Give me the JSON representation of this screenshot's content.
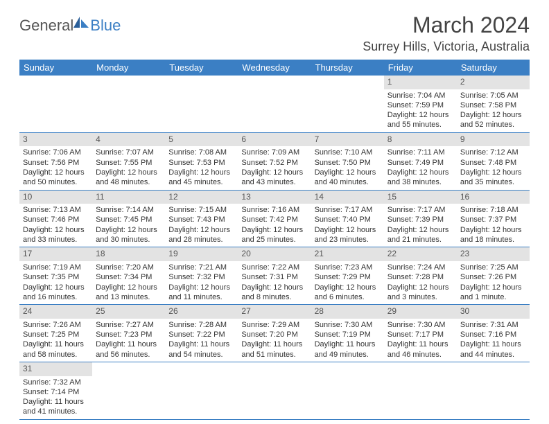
{
  "logo": {
    "general": "General",
    "blue": "Blue"
  },
  "title": "March 2024",
  "location": "Surrey Hills, Victoria, Australia",
  "colors": {
    "header_bg": "#3b7fc4",
    "header_fg": "#ffffff",
    "daynum_bg": "#e3e3e3",
    "row_border": "#3b7fc4",
    "text": "#333333"
  },
  "typography": {
    "title_fontsize": 32,
    "location_fontsize": 18,
    "header_fontsize": 13,
    "cell_fontsize": 11
  },
  "dayHeaders": [
    "Sunday",
    "Monday",
    "Tuesday",
    "Wednesday",
    "Thursday",
    "Friday",
    "Saturday"
  ],
  "weeks": [
    [
      null,
      null,
      null,
      null,
      null,
      {
        "n": "1",
        "sr": "Sunrise: 7:04 AM",
        "ss": "Sunset: 7:59 PM",
        "d1": "Daylight: 12 hours",
        "d2": "and 55 minutes."
      },
      {
        "n": "2",
        "sr": "Sunrise: 7:05 AM",
        "ss": "Sunset: 7:58 PM",
        "d1": "Daylight: 12 hours",
        "d2": "and 52 minutes."
      }
    ],
    [
      {
        "n": "3",
        "sr": "Sunrise: 7:06 AM",
        "ss": "Sunset: 7:56 PM",
        "d1": "Daylight: 12 hours",
        "d2": "and 50 minutes."
      },
      {
        "n": "4",
        "sr": "Sunrise: 7:07 AM",
        "ss": "Sunset: 7:55 PM",
        "d1": "Daylight: 12 hours",
        "d2": "and 48 minutes."
      },
      {
        "n": "5",
        "sr": "Sunrise: 7:08 AM",
        "ss": "Sunset: 7:53 PM",
        "d1": "Daylight: 12 hours",
        "d2": "and 45 minutes."
      },
      {
        "n": "6",
        "sr": "Sunrise: 7:09 AM",
        "ss": "Sunset: 7:52 PM",
        "d1": "Daylight: 12 hours",
        "d2": "and 43 minutes."
      },
      {
        "n": "7",
        "sr": "Sunrise: 7:10 AM",
        "ss": "Sunset: 7:50 PM",
        "d1": "Daylight: 12 hours",
        "d2": "and 40 minutes."
      },
      {
        "n": "8",
        "sr": "Sunrise: 7:11 AM",
        "ss": "Sunset: 7:49 PM",
        "d1": "Daylight: 12 hours",
        "d2": "and 38 minutes."
      },
      {
        "n": "9",
        "sr": "Sunrise: 7:12 AM",
        "ss": "Sunset: 7:48 PM",
        "d1": "Daylight: 12 hours",
        "d2": "and 35 minutes."
      }
    ],
    [
      {
        "n": "10",
        "sr": "Sunrise: 7:13 AM",
        "ss": "Sunset: 7:46 PM",
        "d1": "Daylight: 12 hours",
        "d2": "and 33 minutes."
      },
      {
        "n": "11",
        "sr": "Sunrise: 7:14 AM",
        "ss": "Sunset: 7:45 PM",
        "d1": "Daylight: 12 hours",
        "d2": "and 30 minutes."
      },
      {
        "n": "12",
        "sr": "Sunrise: 7:15 AM",
        "ss": "Sunset: 7:43 PM",
        "d1": "Daylight: 12 hours",
        "d2": "and 28 minutes."
      },
      {
        "n": "13",
        "sr": "Sunrise: 7:16 AM",
        "ss": "Sunset: 7:42 PM",
        "d1": "Daylight: 12 hours",
        "d2": "and 25 minutes."
      },
      {
        "n": "14",
        "sr": "Sunrise: 7:17 AM",
        "ss": "Sunset: 7:40 PM",
        "d1": "Daylight: 12 hours",
        "d2": "and 23 minutes."
      },
      {
        "n": "15",
        "sr": "Sunrise: 7:17 AM",
        "ss": "Sunset: 7:39 PM",
        "d1": "Daylight: 12 hours",
        "d2": "and 21 minutes."
      },
      {
        "n": "16",
        "sr": "Sunrise: 7:18 AM",
        "ss": "Sunset: 7:37 PM",
        "d1": "Daylight: 12 hours",
        "d2": "and 18 minutes."
      }
    ],
    [
      {
        "n": "17",
        "sr": "Sunrise: 7:19 AM",
        "ss": "Sunset: 7:35 PM",
        "d1": "Daylight: 12 hours",
        "d2": "and 16 minutes."
      },
      {
        "n": "18",
        "sr": "Sunrise: 7:20 AM",
        "ss": "Sunset: 7:34 PM",
        "d1": "Daylight: 12 hours",
        "d2": "and 13 minutes."
      },
      {
        "n": "19",
        "sr": "Sunrise: 7:21 AM",
        "ss": "Sunset: 7:32 PM",
        "d1": "Daylight: 12 hours",
        "d2": "and 11 minutes."
      },
      {
        "n": "20",
        "sr": "Sunrise: 7:22 AM",
        "ss": "Sunset: 7:31 PM",
        "d1": "Daylight: 12 hours",
        "d2": "and 8 minutes."
      },
      {
        "n": "21",
        "sr": "Sunrise: 7:23 AM",
        "ss": "Sunset: 7:29 PM",
        "d1": "Daylight: 12 hours",
        "d2": "and 6 minutes."
      },
      {
        "n": "22",
        "sr": "Sunrise: 7:24 AM",
        "ss": "Sunset: 7:28 PM",
        "d1": "Daylight: 12 hours",
        "d2": "and 3 minutes."
      },
      {
        "n": "23",
        "sr": "Sunrise: 7:25 AM",
        "ss": "Sunset: 7:26 PM",
        "d1": "Daylight: 12 hours",
        "d2": "and 1 minute."
      }
    ],
    [
      {
        "n": "24",
        "sr": "Sunrise: 7:26 AM",
        "ss": "Sunset: 7:25 PM",
        "d1": "Daylight: 11 hours",
        "d2": "and 58 minutes."
      },
      {
        "n": "25",
        "sr": "Sunrise: 7:27 AM",
        "ss": "Sunset: 7:23 PM",
        "d1": "Daylight: 11 hours",
        "d2": "and 56 minutes."
      },
      {
        "n": "26",
        "sr": "Sunrise: 7:28 AM",
        "ss": "Sunset: 7:22 PM",
        "d1": "Daylight: 11 hours",
        "d2": "and 54 minutes."
      },
      {
        "n": "27",
        "sr": "Sunrise: 7:29 AM",
        "ss": "Sunset: 7:20 PM",
        "d1": "Daylight: 11 hours",
        "d2": "and 51 minutes."
      },
      {
        "n": "28",
        "sr": "Sunrise: 7:30 AM",
        "ss": "Sunset: 7:19 PM",
        "d1": "Daylight: 11 hours",
        "d2": "and 49 minutes."
      },
      {
        "n": "29",
        "sr": "Sunrise: 7:30 AM",
        "ss": "Sunset: 7:17 PM",
        "d1": "Daylight: 11 hours",
        "d2": "and 46 minutes."
      },
      {
        "n": "30",
        "sr": "Sunrise: 7:31 AM",
        "ss": "Sunset: 7:16 PM",
        "d1": "Daylight: 11 hours",
        "d2": "and 44 minutes."
      }
    ],
    [
      {
        "n": "31",
        "sr": "Sunrise: 7:32 AM",
        "ss": "Sunset: 7:14 PM",
        "d1": "Daylight: 11 hours",
        "d2": "and 41 minutes."
      },
      null,
      null,
      null,
      null,
      null,
      null
    ]
  ]
}
